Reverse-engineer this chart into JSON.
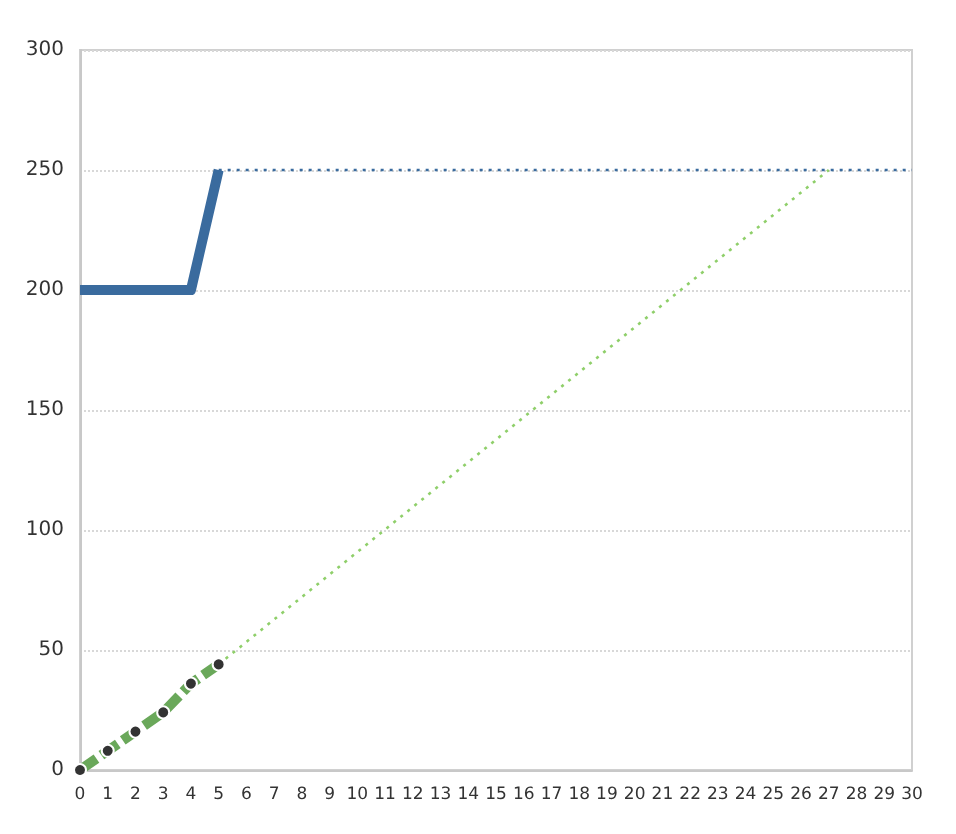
{
  "chart_data": {
    "type": "line",
    "xlim": [
      0,
      30
    ],
    "xticks": [
      0,
      1,
      2,
      3,
      4,
      5,
      6,
      7,
      8,
      9,
      10,
      11,
      12,
      13,
      14,
      15,
      16,
      17,
      18,
      19,
      20,
      21,
      22,
      23,
      24,
      25,
      26,
      27,
      28,
      29,
      30
    ],
    "ylim": [
      0,
      300
    ],
    "yticks": [
      0,
      50,
      100,
      150,
      200,
      250,
      300
    ],
    "grid": "y",
    "series": [
      {
        "color": "#3a6b9e",
        "x": [
          0,
          4,
          5
        ],
        "values": [
          200,
          200,
          250
        ],
        "line_style": "solid",
        "marker": "none"
      },
      {
        "color": "#3a6b9e",
        "x": [
          5,
          30
        ],
        "values": [
          250,
          250
        ],
        "line_style": "dotted",
        "marker": "none"
      },
      {
        "color": "#6aa85a",
        "x": [
          0,
          1,
          2,
          3,
          4,
          5
        ],
        "values": [
          0,
          8,
          16,
          24,
          36,
          44
        ],
        "line_style": "dashed",
        "marker": "circle"
      },
      {
        "color": "#8fcf6a",
        "x": [
          5,
          27
        ],
        "values": [
          44,
          250
        ],
        "line_style": "dotted",
        "marker": "none"
      }
    ]
  }
}
